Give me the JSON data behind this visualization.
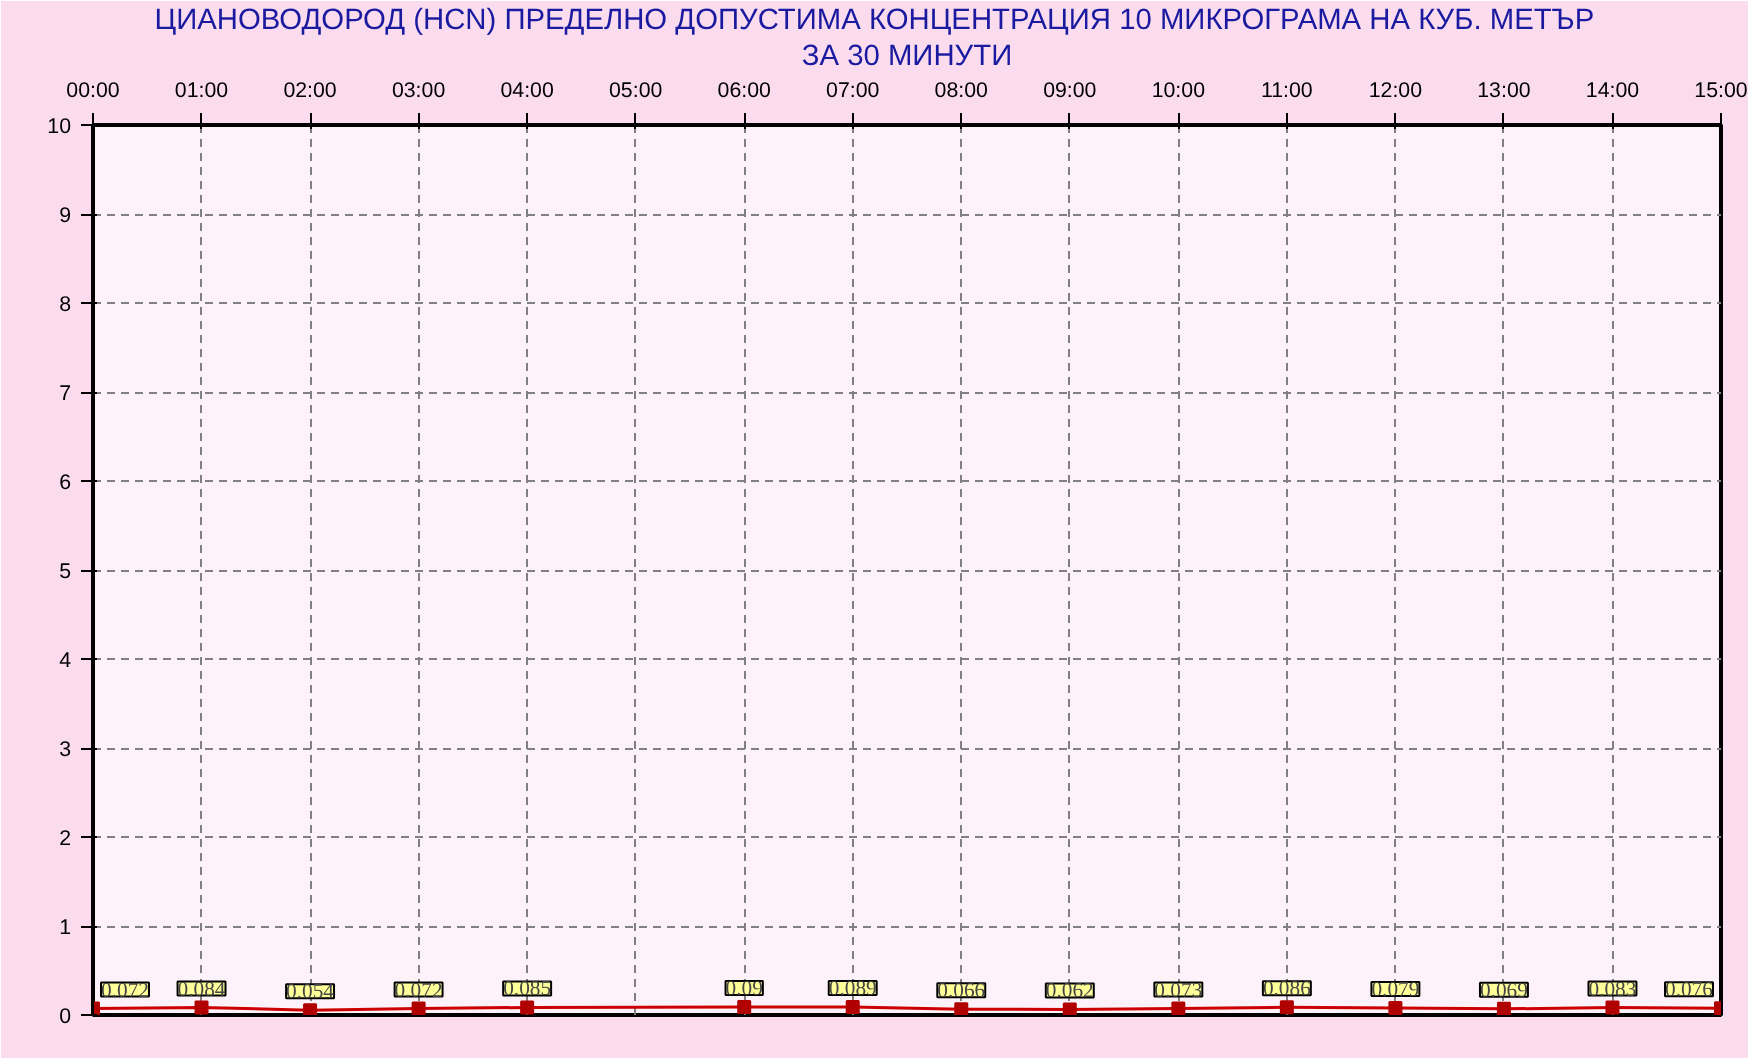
{
  "chart_data": {
    "type": "line",
    "title": "ЦИАНОВОДОРОД     (HCN)    ПРЕДЕЛНО ДОПУСТИМА КОНЦЕНТРАЦИЯ 10 МИКРОГРАМА  НА КУБ. МЕТЪР",
    "subtitle": "ЗА 30 МИНУТИ",
    "x": [
      0,
      1,
      2,
      3,
      4,
      6,
      7,
      8,
      9,
      10,
      11,
      12,
      13,
      14,
      15
    ],
    "series": [
      {
        "color": "#cc0000",
        "values": [
          0.072,
          0.084,
          0.054,
          0.072,
          0.085,
          0.09,
          0.089,
          0.066,
          0.062,
          0.073,
          0.086,
          0.079,
          0.069,
          0.083,
          0.076
        ]
      }
    ],
    "xlim": [
      0,
      15
    ],
    "xticks": [
      {
        "value": 0,
        "label": "00:00"
      },
      {
        "value": 1,
        "label": "01:00"
      },
      {
        "value": 2,
        "label": "02:00"
      },
      {
        "value": 3,
        "label": "03:00"
      },
      {
        "value": 4,
        "label": "04:00"
      },
      {
        "value": 5,
        "label": "05:00"
      },
      {
        "value": 6,
        "label": "06:00"
      },
      {
        "value": 7,
        "label": "07:00"
      },
      {
        "value": 8,
        "label": "08:00"
      },
      {
        "value": 9,
        "label": "09:00"
      },
      {
        "value": 10,
        "label": "10:00"
      },
      {
        "value": 11,
        "label": "11:00"
      },
      {
        "value": 12,
        "label": "12:00"
      },
      {
        "value": 13,
        "label": "13:00"
      },
      {
        "value": 14,
        "label": "14:00"
      },
      {
        "value": 15,
        "label": "15:00"
      }
    ],
    "ylim": [
      0,
      10
    ],
    "yticks": [
      0,
      1,
      2,
      3,
      4,
      5,
      6,
      7,
      8,
      9,
      10
    ],
    "grid": true,
    "marker": "square",
    "line_style": "solid",
    "data_labels": true
  }
}
